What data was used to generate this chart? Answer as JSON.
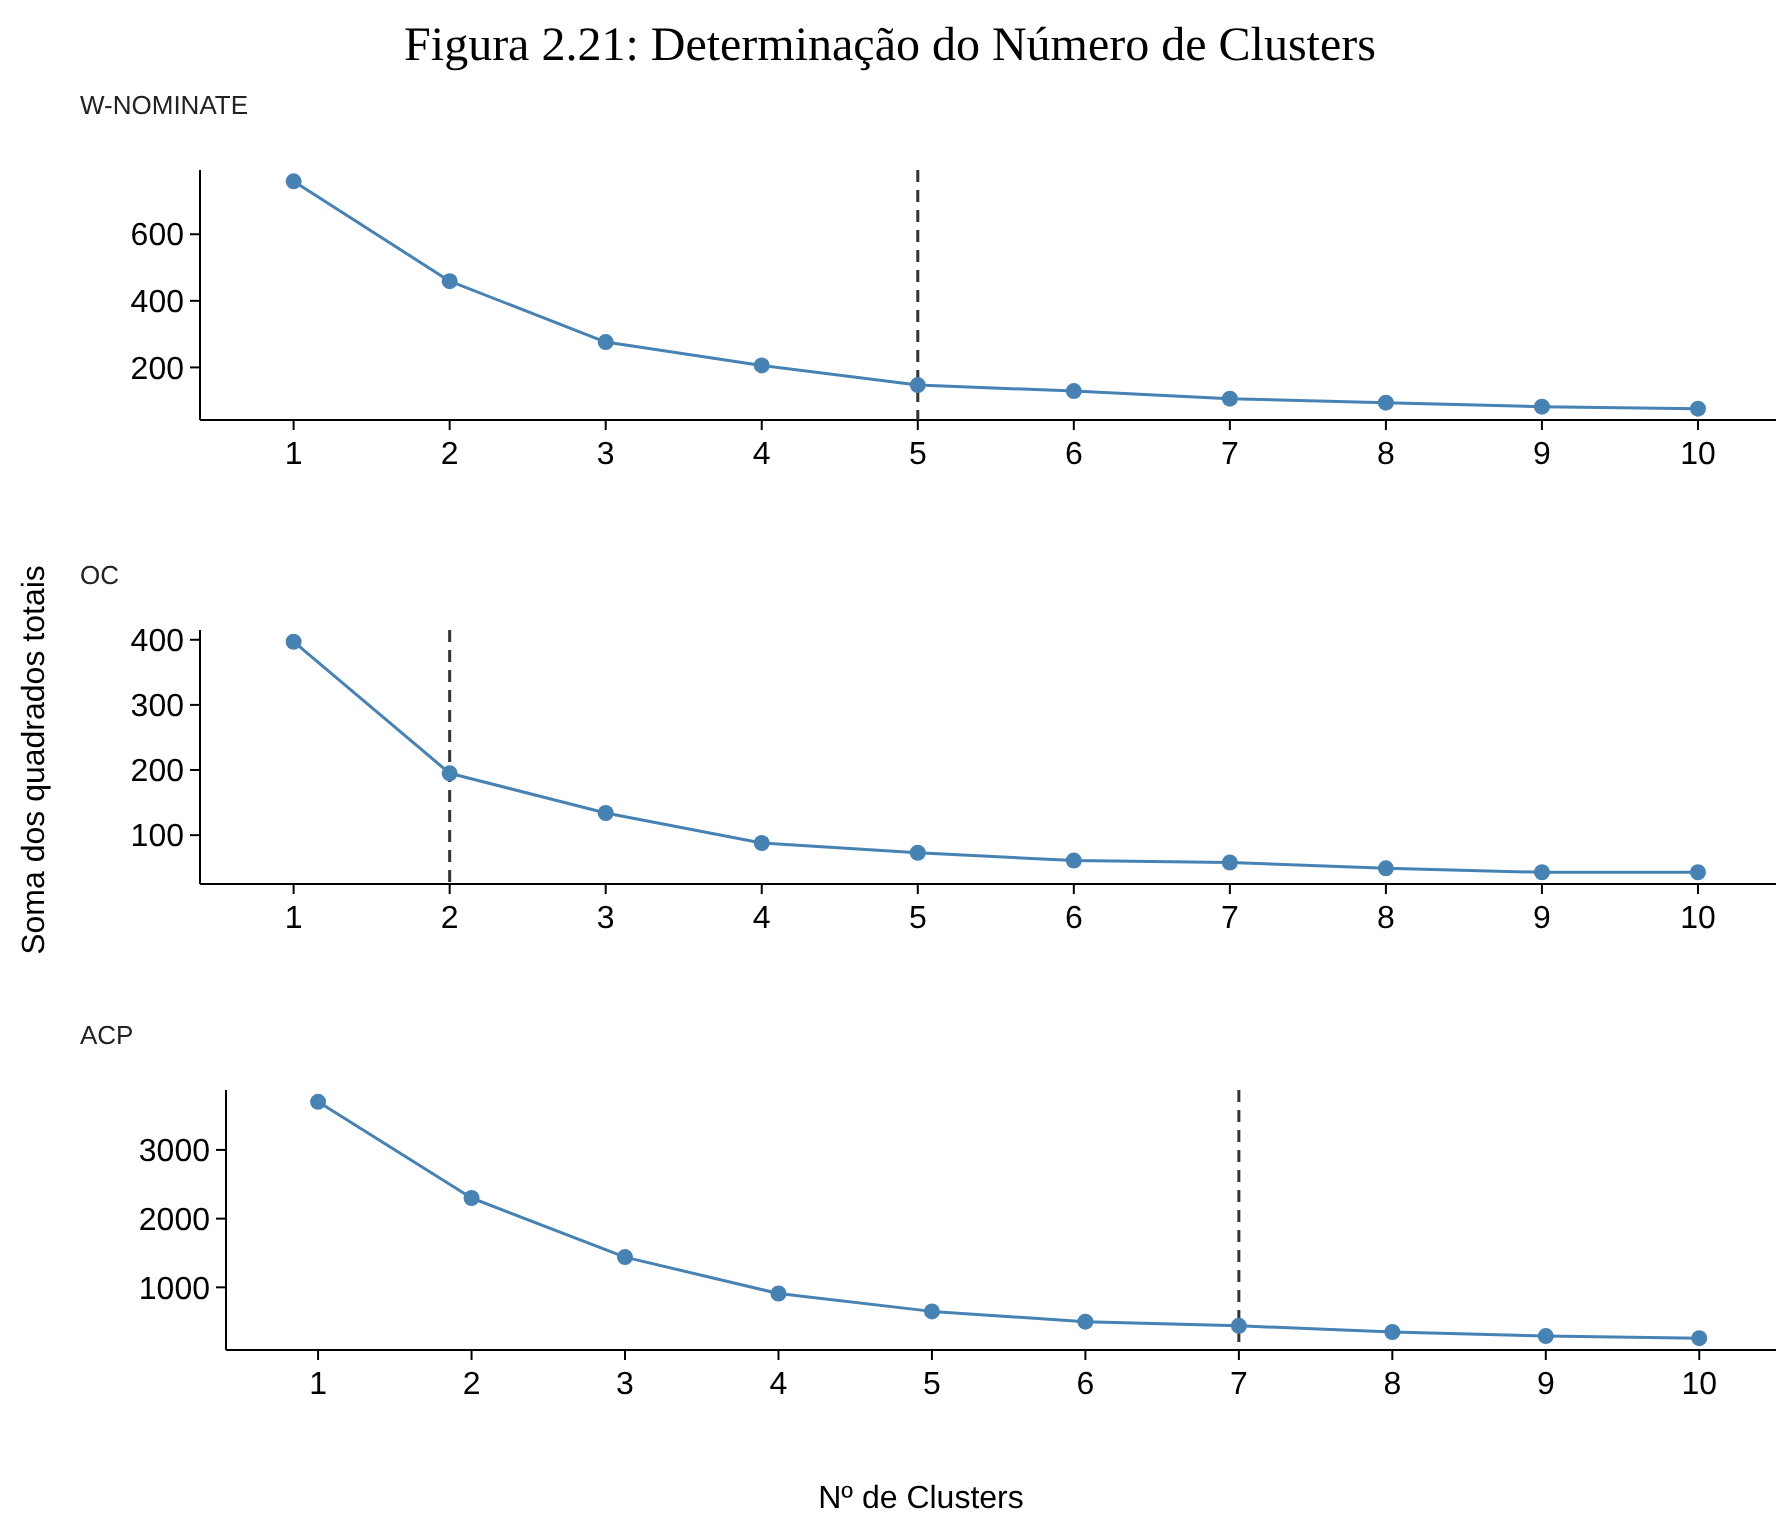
{
  "chart_data": [
    {
      "type": "line",
      "title": "W-NOMINATE",
      "annotations": [
        "Figura 2.21: Determinação do Número de Clusters"
      ],
      "x": [
        1,
        2,
        3,
        4,
        5,
        6,
        7,
        8,
        9,
        10
      ],
      "series": [
        {
          "color": "#4682b4",
          "values": [
            759,
            459,
            276,
            206,
            147,
            129,
            106,
            94,
            82,
            76
          ]
        }
      ],
      "xlim": [
        0.4,
        10.5
      ],
      "xticks": [
        1,
        2,
        3,
        4,
        5,
        6,
        7,
        8,
        9,
        10
      ],
      "ylim": [
        42,
        793
      ],
      "yticks": [
        200,
        400,
        600
      ],
      "marker": "circle",
      "line_style": "solid",
      "grid": false,
      "ref_lines": [
        {
          "axis": "x",
          "value": 5,
          "color": "#333333",
          "line_style": "dashed"
        }
      ]
    },
    {
      "type": "line",
      "title": "OC",
      "ylabel": "Soma dos quadrados totais",
      "x": [
        1,
        2,
        3,
        4,
        5,
        6,
        7,
        8,
        9,
        10
      ],
      "series": [
        {
          "color": "#4682b4",
          "values": [
            397,
            195,
            134,
            88,
            73,
            61,
            58,
            49,
            43,
            43
          ]
        }
      ],
      "xlim": [
        0.4,
        10.5
      ],
      "xticks": [
        1,
        2,
        3,
        4,
        5,
        6,
        7,
        8,
        9,
        10
      ],
      "ylim": [
        25,
        415
      ],
      "yticks": [
        100,
        200,
        300,
        400
      ],
      "marker": "circle",
      "line_style": "solid",
      "grid": false,
      "ref_lines": [
        {
          "axis": "x",
          "value": 2,
          "color": "#333333",
          "line_style": "dashed"
        }
      ]
    },
    {
      "type": "line",
      "title": "ACP",
      "xlabel": "Nº de Clusters",
      "x": [
        1,
        2,
        3,
        4,
        5,
        6,
        7,
        8,
        9,
        10
      ],
      "series": [
        {
          "color": "#4682b4",
          "values": [
            3700,
            2300,
            1440,
            910,
            650,
            500,
            440,
            350,
            290,
            260
          ]
        }
      ],
      "xlim": [
        0.4,
        10.5
      ],
      "xticks": [
        1,
        2,
        3,
        4,
        5,
        6,
        7,
        8,
        9,
        10
      ],
      "ylim": [
        88,
        3872
      ],
      "yticks": [
        1000,
        2000,
        3000
      ],
      "marker": "circle",
      "line_style": "solid",
      "grid": false,
      "ref_lines": [
        {
          "axis": "x",
          "value": 7,
          "color": "#333333",
          "line_style": "dashed"
        }
      ]
    }
  ]
}
